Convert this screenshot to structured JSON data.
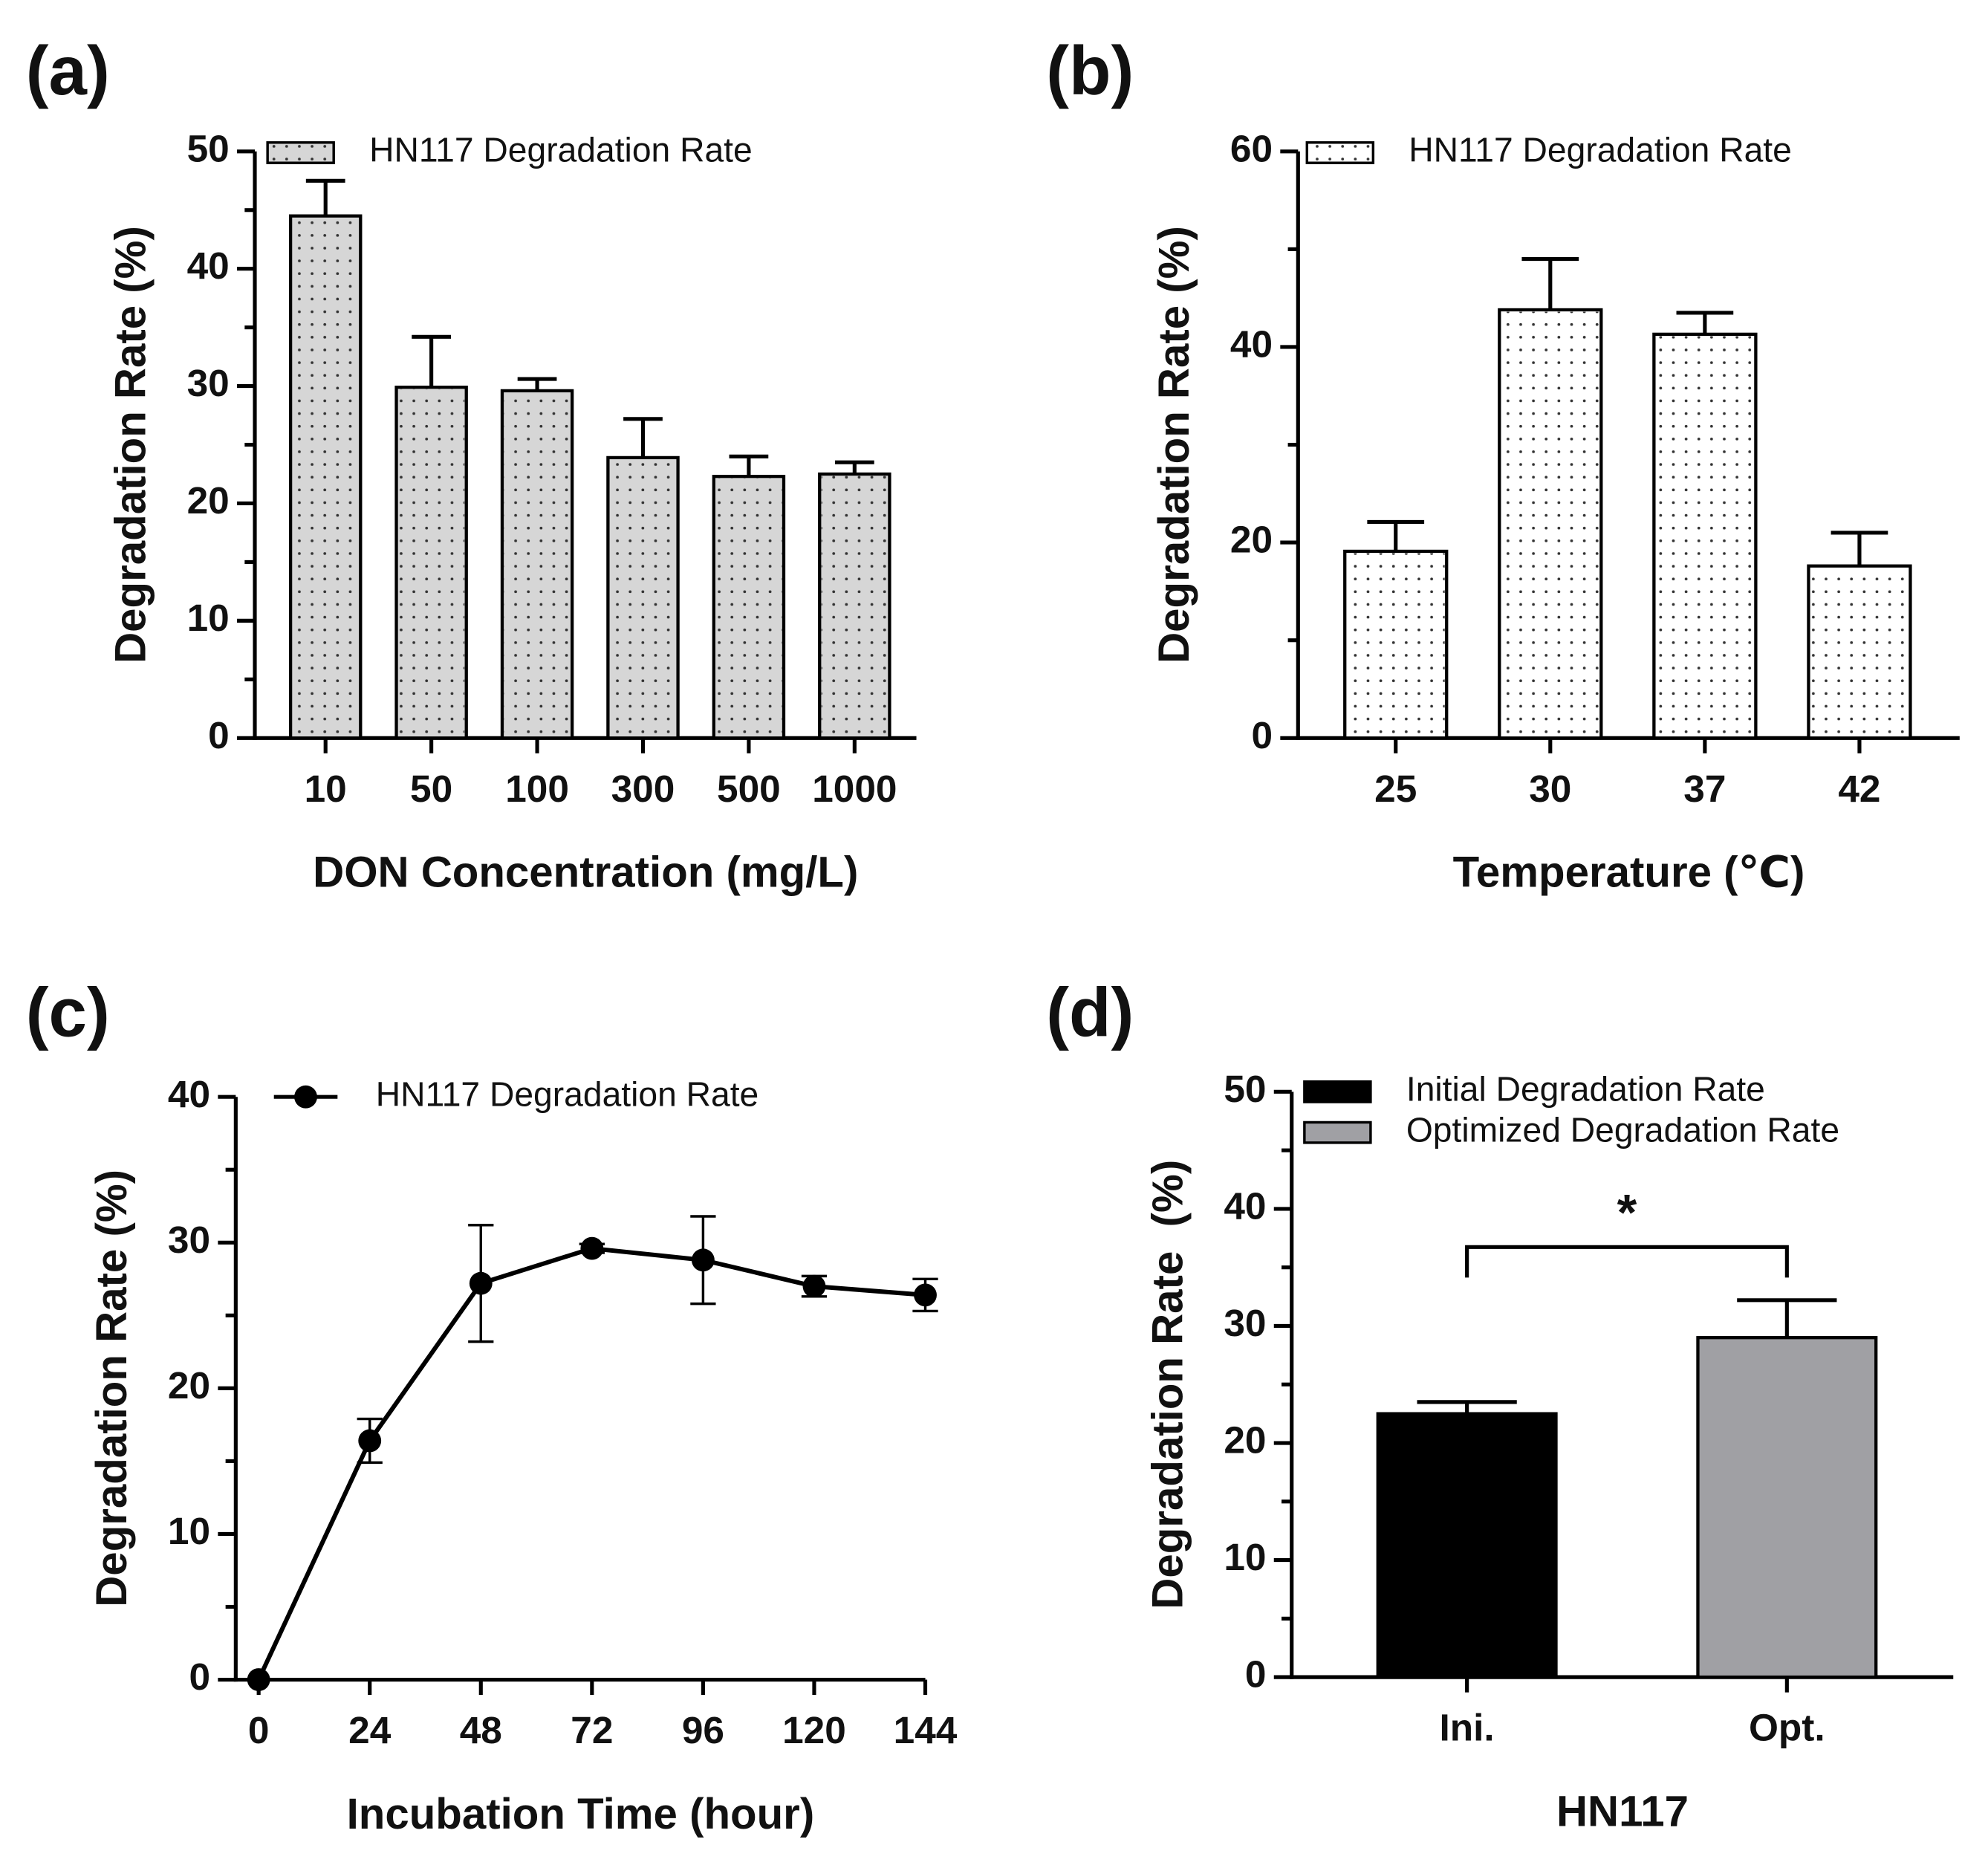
{
  "chart_data": [
    {
      "type": "bar",
      "panel": "(a)",
      "categories": [
        "10",
        "50",
        "100",
        "300",
        "500",
        "1000"
      ],
      "series": [
        {
          "name": "HN117 Degradation Rate",
          "color": "#d6d6d6",
          "pattern": "dots",
          "values": [
            44.5,
            29.9,
            29.6,
            23.9,
            22.3,
            22.5
          ],
          "errors": [
            3.0,
            4.3,
            1.0,
            3.3,
            1.7,
            1.0
          ]
        }
      ],
      "ylim": [
        0,
        50
      ],
      "yticks": [
        0,
        10,
        20,
        30,
        40,
        50
      ],
      "yminor": [
        5,
        15,
        25,
        35,
        45
      ],
      "xlabel": "DON Concentration (mg/L)",
      "ylabel": "Degradation Rate (%)"
    },
    {
      "type": "bar",
      "panel": "(b)",
      "categories": [
        "25",
        "30",
        "37",
        "42"
      ],
      "series": [
        {
          "name": "HN117 Degradation Rate",
          "color": "#ffffff",
          "pattern": "dots",
          "values": [
            19.1,
            43.8,
            41.3,
            17.6
          ],
          "errors": [
            3.0,
            5.2,
            2.2,
            3.4
          ]
        }
      ],
      "ylim": [
        0,
        60
      ],
      "yticks": [
        0,
        20,
        40,
        60
      ],
      "yminor": [
        10,
        30,
        50
      ],
      "xlabel": "Temperature (℃)",
      "ylabel": "Degradation Rate (%)"
    },
    {
      "type": "line",
      "panel": "(c)",
      "x": [
        0,
        24,
        48,
        72,
        96,
        120,
        144
      ],
      "series": [
        {
          "name": "HN117 Degradation Rate",
          "color": "#000000",
          "values": [
            0,
            16.4,
            27.2,
            29.6,
            28.8,
            27.0,
            26.4
          ],
          "errors": [
            0,
            1.5,
            4.0,
            0.3,
            3.0,
            0.7,
            1.1
          ]
        }
      ],
      "xlim": [
        0,
        144
      ],
      "xticks": [
        0,
        24,
        48,
        72,
        96,
        120,
        144
      ],
      "ylim": [
        0,
        40
      ],
      "yticks": [
        0,
        10,
        20,
        30,
        40
      ],
      "yminor": [
        5,
        15,
        25,
        35
      ],
      "xlabel": "Incubation Time (hour)",
      "ylabel": "Degradation Rate (%)"
    },
    {
      "type": "bar",
      "panel": "(d)",
      "categories": [
        "Ini.",
        "Opt."
      ],
      "series": [
        {
          "name": "Initial Degradation Rate",
          "color": "#000000",
          "values": [
            22.5,
            null
          ],
          "errors": [
            1.0,
            null
          ]
        },
        {
          "name": "Optimized Degradation Rate",
          "color": "#a0a0a4",
          "values": [
            null,
            29.0
          ],
          "errors": [
            null,
            3.2
          ]
        }
      ],
      "annotation": "*",
      "ylim": [
        0,
        50
      ],
      "yticks": [
        0,
        10,
        20,
        30,
        40,
        50
      ],
      "yminor": [
        5,
        15,
        25,
        35,
        45
      ],
      "xlabel": "HN117",
      "ylabel": "Degradation Rate  (%)"
    }
  ]
}
